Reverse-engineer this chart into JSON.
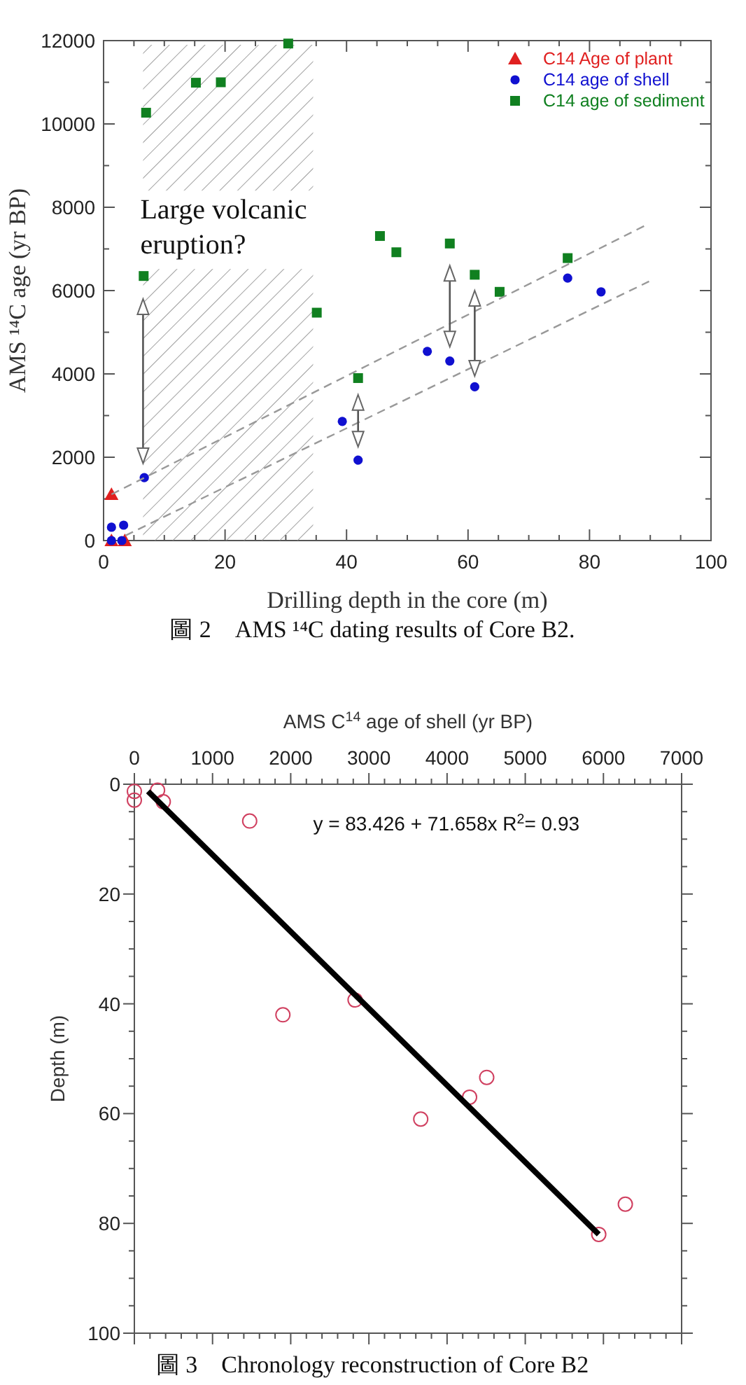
{
  "chart_data": [
    {
      "type": "scatter",
      "xlabel": "Drilling depth in the core (m)",
      "ylabel": "AMS ¹⁴C age (yr BP)",
      "xlim": [
        0,
        100
      ],
      "xticks": [
        0,
        20,
        40,
        60,
        80,
        100
      ],
      "ylim": [
        0,
        12000
      ],
      "yticks": [
        0,
        2000,
        4000,
        6000,
        8000,
        10000,
        12000
      ],
      "grid": false,
      "legend": "top right",
      "series": [
        {
          "name": "C14 Age of plant",
          "color": "#e02020",
          "marker": "triangle",
          "x": [
            1.3,
            1.3,
            3.5
          ],
          "values": [
            1110,
            0,
            0
          ]
        },
        {
          "name": "C14 age of shell",
          "color": "#1010d0",
          "marker": "circle",
          "x": [
            1.3,
            3.3,
            1.3,
            3.0,
            6.7,
            39.3,
            41.9,
            53.3,
            57.0,
            61.1,
            76.4,
            81.9
          ],
          "values": [
            320,
            370,
            0,
            0,
            1510,
            2860,
            1930,
            4540,
            4310,
            3690,
            6300,
            5970
          ]
        },
        {
          "name": "C14 age of sediment",
          "color": "#108020",
          "marker": "square",
          "x": [
            6.6,
            7.0,
            15.2,
            19.3,
            30.4,
            35.1,
            41.9,
            45.5,
            48.2,
            57.0,
            61.1,
            65.2,
            76.4
          ],
          "values": [
            6350,
            10270,
            10990,
            11000,
            11930,
            5470,
            3900,
            7310,
            6920,
            7130,
            6380,
            5970,
            6780
          ]
        },
        {
          "type": "line",
          "color": "#999999",
          "marker": "none",
          "line_style": "dashed",
          "x": [
            1.3,
            89.0
          ],
          "values": [
            1110,
            7550
          ]
        },
        {
          "type": "line",
          "color": "#999999",
          "marker": "none",
          "line_style": "dashed",
          "x": [
            3.6,
            89.8
          ],
          "values": [
            120,
            6220
          ]
        }
      ],
      "bands": [
        {
          "axis": "x",
          "from": 6.5,
          "to": 34.5,
          "label": "Large volcanic\neruption?"
        }
      ],
      "annotations": [
        "圖 2　AMS ¹⁴C dating results of Core B2."
      ]
    },
    {
      "type": "scatter",
      "xlabel": "AMS C$^{14}$ age of shell (yr BP)",
      "ylabel": "Depth (m)",
      "xlim": [
        0,
        7000
      ],
      "xticks": [
        0,
        1000,
        2000,
        3000,
        4000,
        5000,
        6000,
        7000
      ],
      "ylim": [
        100,
        0
      ],
      "yticks": [
        0,
        20,
        40,
        60,
        80,
        100
      ],
      "grid": false,
      "series": [
        {
          "color": "#d04060",
          "marker": "circle",
          "x": [
            0,
            0,
            297,
            370,
            1475,
            2823,
            1900,
            4507,
            4288,
            3663,
            6280,
            5940
          ],
          "values": [
            1.3,
            2.9,
            1.1,
            3.2,
            6.7,
            39.3,
            42.0,
            53.4,
            57.0,
            61.0,
            76.5,
            82.0
          ]
        },
        {
          "type": "line",
          "color": "#000000",
          "marker": "none",
          "line_style": "solid",
          "x": [
            175,
            5940
          ],
          "values": [
            1.3,
            82.0
          ]
        }
      ],
      "annotations": [
        "y = 83.426 + 71.658x   R$^{2}$= 0.93",
        "圖 3　Chronology reconstruction of Core B2"
      ]
    }
  ]
}
